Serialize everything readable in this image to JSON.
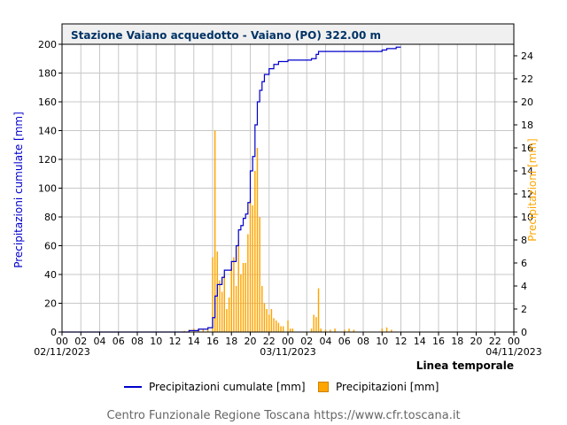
{
  "chart_data": {
    "type": "line+bar",
    "title": "Stazione Vaiano acquedotto - Vaiano (PO) 322.00 m",
    "xlabel": "Linea temporale",
    "ylabel_left": "Precipitazioni cumulate [mm]",
    "ylabel_right": "Precipitazioni [mm]",
    "ylim_left": [
      0,
      200
    ],
    "ylim_right": [
      0,
      25
    ],
    "yticks_left": [
      "0",
      "20",
      "40",
      "60",
      "80",
      "100",
      "120",
      "140",
      "160",
      "180",
      "200"
    ],
    "yticks_right": [
      "0",
      "2",
      "4",
      "6",
      "8",
      "10",
      "12",
      "14",
      "16",
      "18",
      "20",
      "22",
      "24"
    ],
    "xlim_hours": [
      0,
      48
    ],
    "xtick_labels": [
      "00",
      "02",
      "04",
      "06",
      "08",
      "10",
      "12",
      "14",
      "16",
      "18",
      "20",
      "22",
      "00",
      "02",
      "04",
      "06",
      "08",
      "10",
      "12",
      "14",
      "16",
      "18",
      "20",
      "22",
      "00"
    ],
    "date_labels": [
      "02/11/2023",
      "03/11/2023",
      "04/11/2023"
    ],
    "grid": true,
    "legend_position": "bottom",
    "colors": {
      "cumulative": "#0000cc",
      "bars": "#ffa500",
      "left_axis_label": "#0000cc",
      "right_axis_label": "#ffa500",
      "title": "#003366"
    },
    "series": [
      {
        "name": "Precipitazioni cumulate [mm]",
        "type": "step",
        "points": [
          [
            0,
            0
          ],
          [
            13.0,
            0
          ],
          [
            13.5,
            1
          ],
          [
            14.5,
            2
          ],
          [
            15.5,
            3
          ],
          [
            16.0,
            10
          ],
          [
            16.25,
            25
          ],
          [
            16.5,
            33
          ],
          [
            17.0,
            38
          ],
          [
            17.25,
            43
          ],
          [
            18.0,
            49
          ],
          [
            18.5,
            60
          ],
          [
            18.75,
            71
          ],
          [
            19.0,
            74
          ],
          [
            19.25,
            79
          ],
          [
            19.5,
            82
          ],
          [
            19.75,
            90
          ],
          [
            20.0,
            112
          ],
          [
            20.25,
            122
          ],
          [
            20.5,
            144
          ],
          [
            20.75,
            160
          ],
          [
            21.0,
            168
          ],
          [
            21.25,
            174
          ],
          [
            21.5,
            179
          ],
          [
            22.0,
            183
          ],
          [
            22.5,
            186
          ],
          [
            23.0,
            188
          ],
          [
            24.0,
            189
          ],
          [
            26.5,
            190
          ],
          [
            27.0,
            193
          ],
          [
            27.25,
            195
          ],
          [
            30.0,
            195
          ],
          [
            34.0,
            196
          ],
          [
            34.5,
            197
          ],
          [
            35.5,
            198
          ],
          [
            36.0,
            198
          ]
        ]
      },
      {
        "name": "Precipitazioni [mm]",
        "type": "bar",
        "points": [
          [
            13.0,
            0.1
          ],
          [
            13.5,
            0.2
          ],
          [
            14.0,
            0.3
          ],
          [
            14.5,
            0.3
          ],
          [
            15.0,
            0.3
          ],
          [
            15.5,
            0.3
          ],
          [
            16.0,
            6.5
          ],
          [
            16.25,
            17.5
          ],
          [
            16.5,
            7.0
          ],
          [
            16.75,
            4.5
          ],
          [
            17.0,
            3.5
          ],
          [
            17.25,
            5.0
          ],
          [
            17.5,
            2.0
          ],
          [
            17.75,
            3.0
          ],
          [
            18.0,
            5.5
          ],
          [
            18.25,
            6.5
          ],
          [
            18.5,
            4.0
          ],
          [
            18.75,
            8.0
          ],
          [
            19.0,
            5.0
          ],
          [
            19.25,
            6.0
          ],
          [
            19.5,
            6.0
          ],
          [
            19.75,
            8.5
          ],
          [
            20.0,
            11.5
          ],
          [
            20.25,
            11.0
          ],
          [
            20.5,
            14.0
          ],
          [
            20.75,
            16.0
          ],
          [
            21.0,
            10.0
          ],
          [
            21.25,
            4.0
          ],
          [
            21.5,
            2.5
          ],
          [
            21.75,
            2.0
          ],
          [
            22.0,
            1.5
          ],
          [
            22.25,
            2.0
          ],
          [
            22.5,
            1.2
          ],
          [
            22.75,
            1.0
          ],
          [
            23.0,
            0.8
          ],
          [
            23.25,
            0.5
          ],
          [
            23.5,
            0.5
          ],
          [
            24.0,
            1.0
          ],
          [
            24.25,
            0.3
          ],
          [
            24.5,
            0.3
          ],
          [
            26.5,
            0.3
          ],
          [
            26.75,
            1.5
          ],
          [
            27.0,
            1.3
          ],
          [
            27.25,
            3.8
          ],
          [
            27.5,
            0.3
          ],
          [
            28.0,
            0.2
          ],
          [
            28.5,
            0.2
          ],
          [
            29.0,
            0.3
          ],
          [
            30.0,
            0.2
          ],
          [
            30.5,
            0.3
          ],
          [
            31.0,
            0.2
          ],
          [
            34.0,
            0.3
          ],
          [
            34.5,
            0.4
          ],
          [
            35.0,
            0.2
          ]
        ]
      }
    ]
  },
  "footer": "Centro Funzionale Regione Toscana https://www.cfr.toscana.it"
}
